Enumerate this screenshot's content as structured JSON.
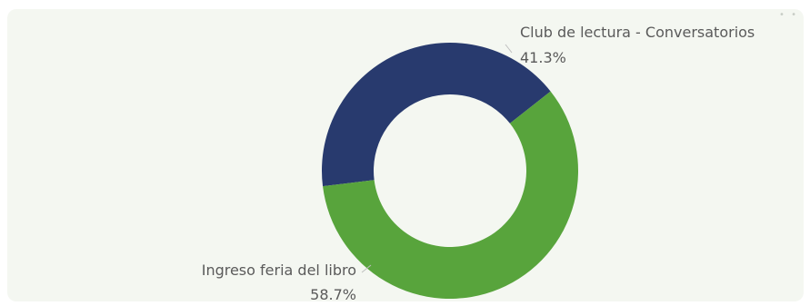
{
  "chart_data": {
    "type": "pie",
    "donut": true,
    "slices": [
      {
        "label": "Club de lectura - Conversatorios",
        "value": 41.3,
        "value_label": "41.3%",
        "color": "#283a6e"
      },
      {
        "label": "Ingreso feria del libro",
        "value": 58.7,
        "value_label": "58.7%",
        "color": "#58a43c"
      }
    ]
  },
  "colors": {
    "background": "#f4f7f1",
    "leader": "#bfbfbf",
    "label_text": "#5a5a5a"
  }
}
